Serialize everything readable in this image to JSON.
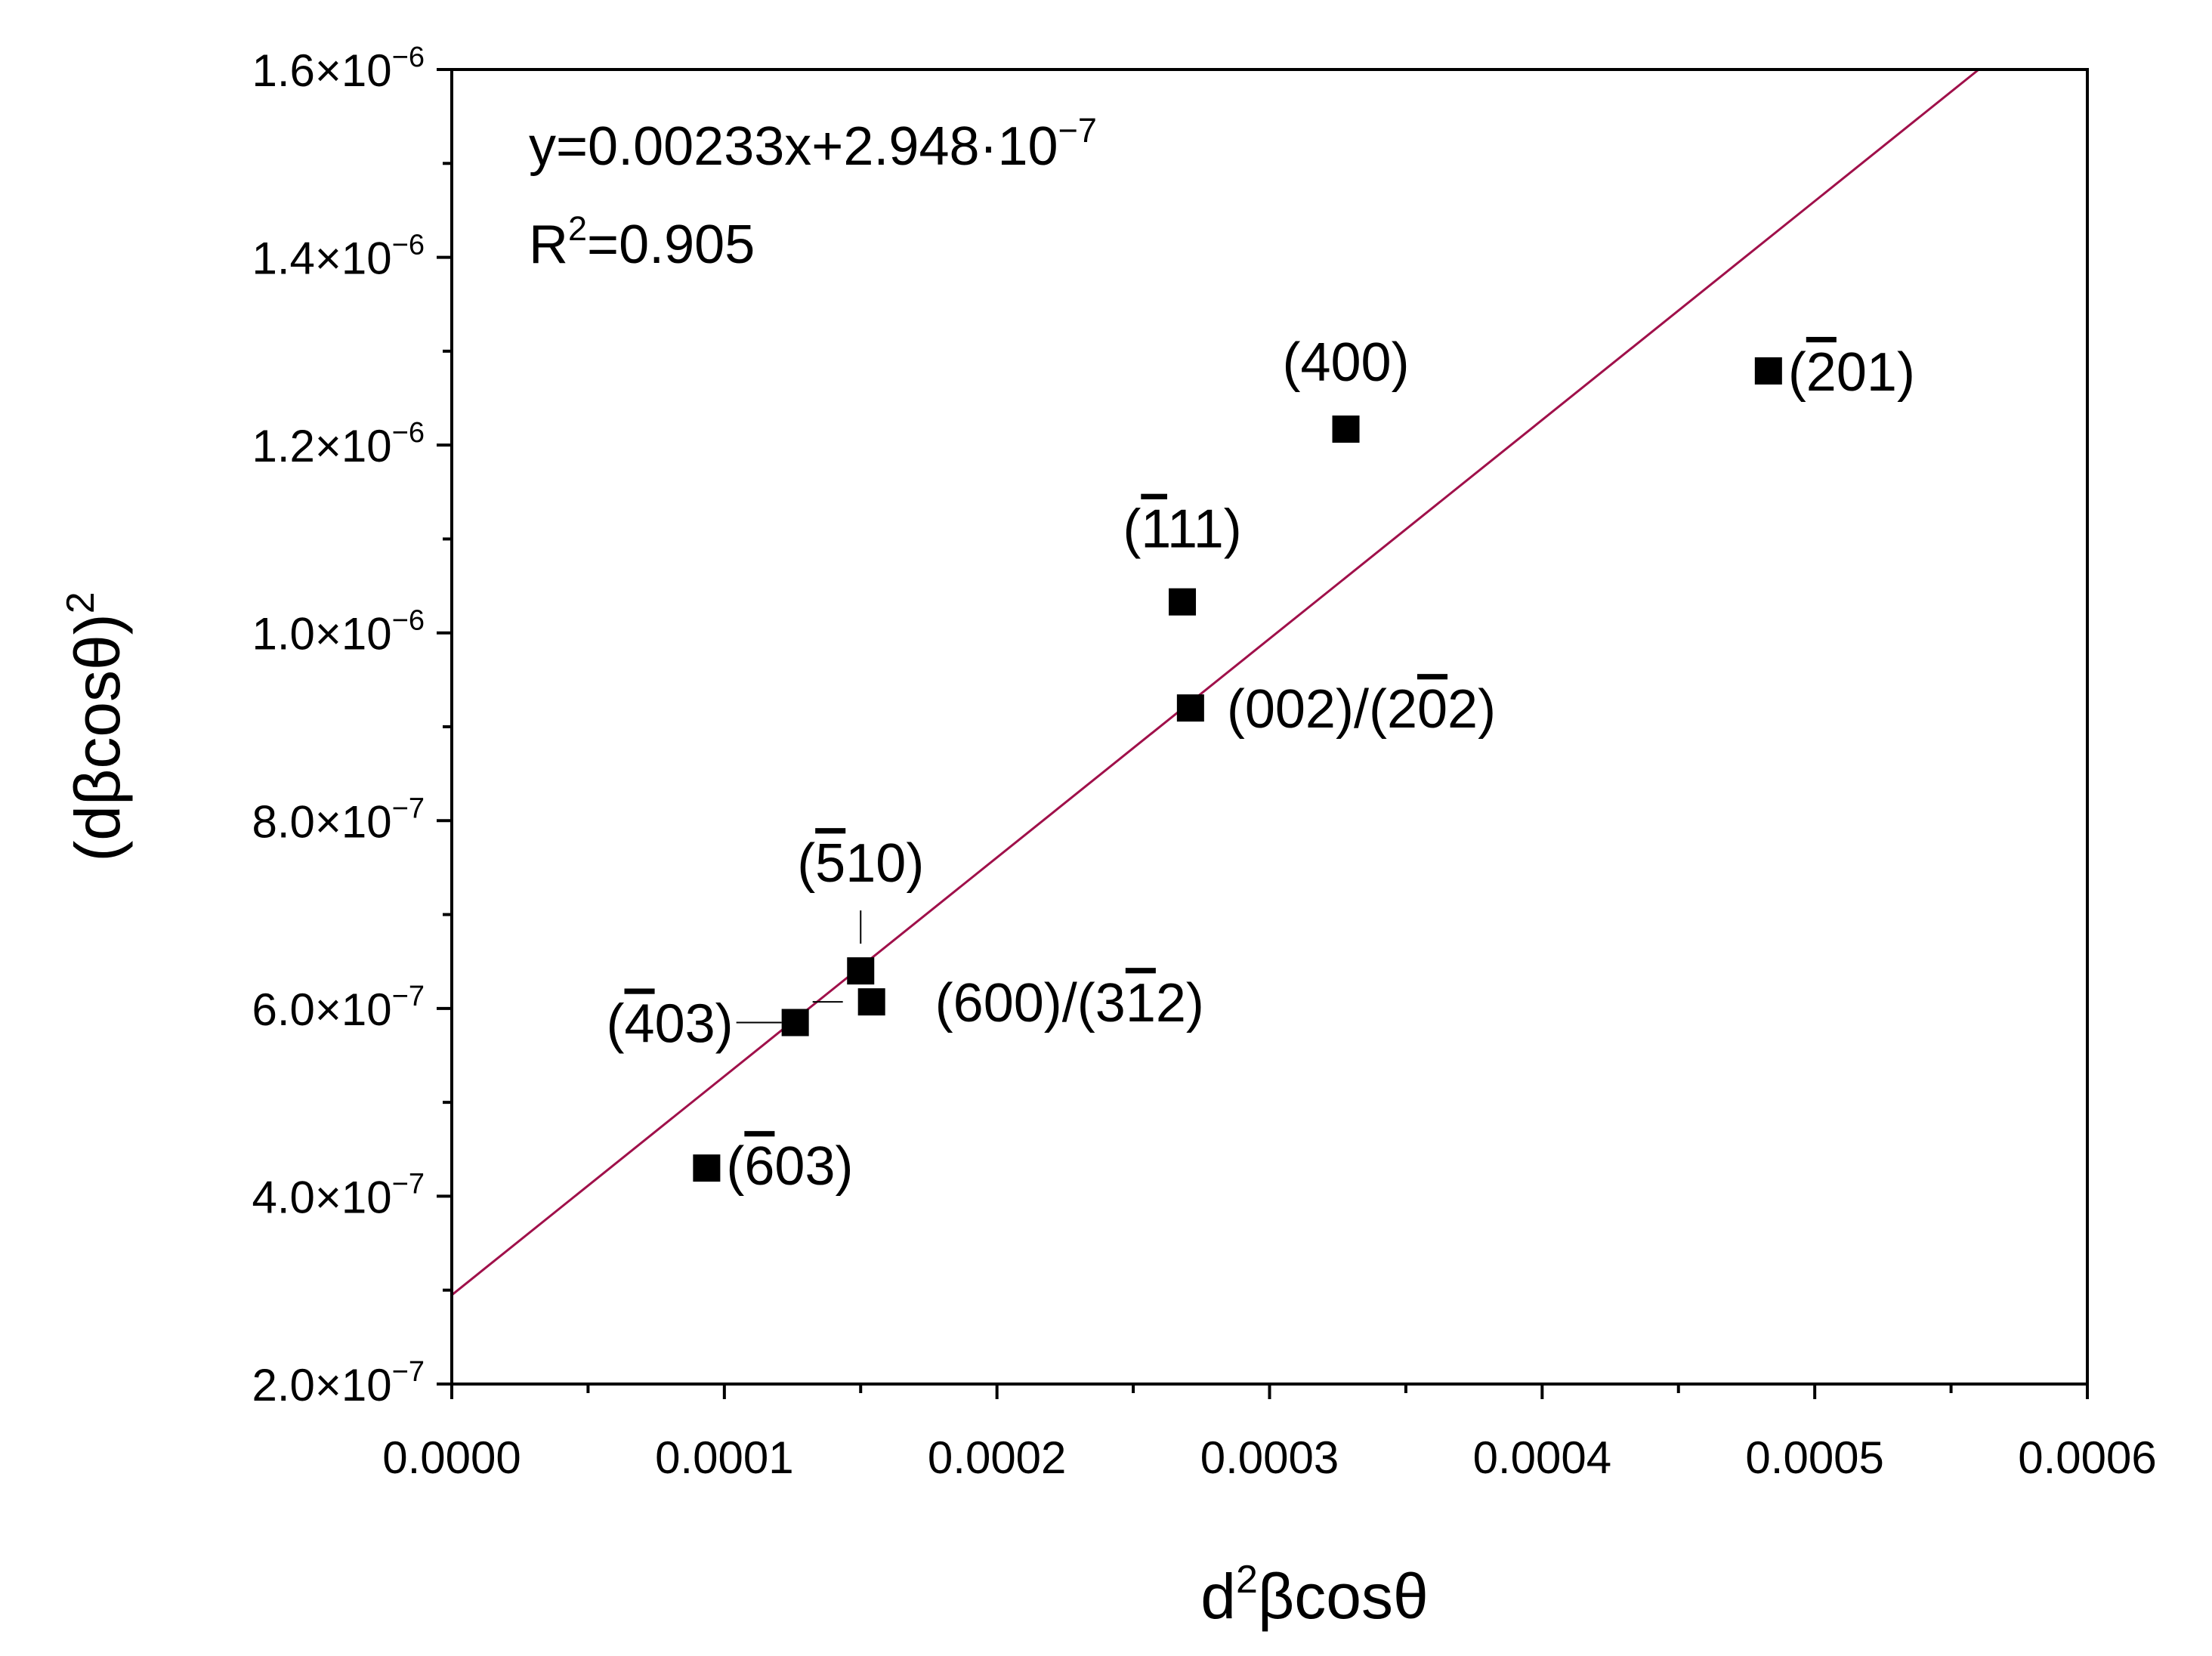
{
  "chart_data": {
    "type": "scatter",
    "xlabel": {
      "base": "d",
      "sup": "2",
      "rest": "βcosθ"
    },
    "ylabel": {
      "text": "(dβcosθ)",
      "sup": "2"
    },
    "xlim": [
      0,
      0.0006
    ],
    "ylim": [
      2e-07,
      1.6e-06
    ],
    "x_ticks": [
      "0.0000",
      "0.0001",
      "0.0002",
      "0.0003",
      "0.0004",
      "0.0005",
      "0.0006"
    ],
    "x_tick_values": [
      0,
      0.0001,
      0.0002,
      0.0003,
      0.0004,
      0.0005,
      0.0006
    ],
    "y_ticks": [
      {
        "value": 2e-07,
        "mantissa": "2.0",
        "exp": "−7"
      },
      {
        "value": 4e-07,
        "mantissa": "4.0",
        "exp": "−7"
      },
      {
        "value": 6e-07,
        "mantissa": "6.0",
        "exp": "−7"
      },
      {
        "value": 8e-07,
        "mantissa": "8.0",
        "exp": "−7"
      },
      {
        "value": 1e-06,
        "mantissa": "1.0",
        "exp": "−6"
      },
      {
        "value": 1.2e-06,
        "mantissa": "1.2",
        "exp": "−6"
      },
      {
        "value": 1.4e-06,
        "mantissa": "1.4",
        "exp": "−6"
      },
      {
        "value": 1.6e-06,
        "mantissa": "1.6",
        "exp": "−6"
      }
    ],
    "grid": false,
    "points": [
      {
        "label": "(603)",
        "bar_digit": 0,
        "x": 9.35e-05,
        "y": 4.3e-07
      },
      {
        "label": "(403)",
        "bar_digit": 0,
        "x": 0.000126,
        "y": 5.85e-07
      },
      {
        "label": "(510)",
        "bar_digit": 0,
        "x": 0.00015,
        "y": 6.4e-07
      },
      {
        "label": "(600)/(312)",
        "bar_digit": 7,
        "x": 0.000154,
        "y": 6.07e-07
      },
      {
        "label": "(111)",
        "bar_digit": 0,
        "x": 0.000268,
        "y": 1.033e-06
      },
      {
        "label": "(002)/(202)",
        "bar_digit": 7,
        "x": 0.000271,
        "y": 9.2e-07
      },
      {
        "label": "(400)",
        "bar_digit": -1,
        "x": 0.000328,
        "y": 1.217e-06
      },
      {
        "label": "(201)",
        "bar_digit": 0,
        "x": 0.000483,
        "y": 1.279e-06
      }
    ],
    "fit": {
      "equation_prefix": "y=0.00233x+2.948·10",
      "equation_exp": "−7",
      "r2_prefix": "R",
      "r2_sup": "2",
      "r2_suffix": "=0.905",
      "slope": 0.00233,
      "intercept": 2.948e-07,
      "color": "#a0104a"
    },
    "marker_color": "#000000"
  }
}
